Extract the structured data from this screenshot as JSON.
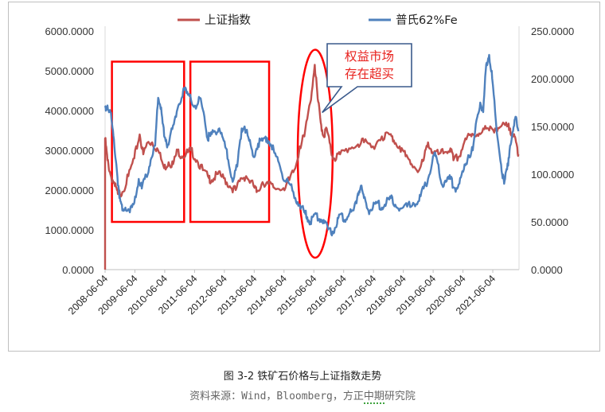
{
  "caption": "图 3-2 铁矿石价格与上证指数走势",
  "source_prefix": "资料来源：Wind，Bloomberg，方正",
  "source_underlined": "中期",
  "source_suffix": "研究院",
  "callout_text": [
    "权益市场",
    "存在超买"
  ],
  "chart_data": {
    "type": "line",
    "title": "",
    "x_ticks": [
      "2008-06-04",
      "2009-06-04",
      "2010-06-04",
      "2011-06-04",
      "2012-06-04",
      "2013-06-04",
      "2014-06-04",
      "2015-06-04",
      "2016-06-04",
      "2017-06-04",
      "2018-06-04",
      "2019-06-04",
      "2020-06-04",
      "2021-06-04"
    ],
    "x_range": [
      2008.42,
      2022.3
    ],
    "y_left": {
      "ticks": [
        "0.0000",
        "1000.0000",
        "2000.0000",
        "3000.0000",
        "4000.0000",
        "5000.0000",
        "6000.0000"
      ],
      "range": [
        0,
        6000
      ]
    },
    "y_right": {
      "ticks": [
        "0.0000",
        "50.0000",
        "100.0000",
        "150.0000",
        "200.0000",
        "250.0000"
      ],
      "range": [
        0,
        250
      ]
    },
    "legend": {
      "position": "top",
      "entries": [
        "上证指数",
        "普氏62%Fe"
      ]
    },
    "series": [
      {
        "name": "上证指数",
        "axis": "left",
        "color": "#c0504d",
        "points": [
          [
            2008.42,
            3300
          ],
          [
            2008.5,
            2750
          ],
          [
            2008.6,
            2400
          ],
          [
            2008.75,
            2100
          ],
          [
            2008.85,
            1900
          ],
          [
            2009.0,
            1950
          ],
          [
            2009.2,
            2350
          ],
          [
            2009.4,
            2800
          ],
          [
            2009.58,
            3400
          ],
          [
            2009.7,
            2900
          ],
          [
            2009.85,
            3200
          ],
          [
            2010.0,
            3200
          ],
          [
            2010.2,
            3000
          ],
          [
            2010.4,
            2550
          ],
          [
            2010.55,
            2700
          ],
          [
            2010.7,
            2650
          ],
          [
            2010.85,
            3000
          ],
          [
            2011.0,
            2850
          ],
          [
            2011.2,
            2950
          ],
          [
            2011.3,
            3000
          ],
          [
            2011.5,
            2750
          ],
          [
            2011.7,
            2500
          ],
          [
            2011.9,
            2300
          ],
          [
            2012.0,
            2250
          ],
          [
            2012.2,
            2400
          ],
          [
            2012.4,
            2300
          ],
          [
            2012.6,
            2100
          ],
          [
            2012.8,
            2000
          ],
          [
            2013.0,
            2300
          ],
          [
            2013.15,
            2350
          ],
          [
            2013.4,
            2100
          ],
          [
            2013.5,
            1950
          ],
          [
            2013.7,
            2200
          ],
          [
            2013.9,
            2150
          ],
          [
            2014.1,
            2050
          ],
          [
            2014.4,
            2050
          ],
          [
            2014.6,
            2250
          ],
          [
            2014.8,
            2550
          ],
          [
            2014.95,
            3100
          ],
          [
            2015.1,
            3350
          ],
          [
            2015.3,
            4200
          ],
          [
            2015.45,
            5150
          ],
          [
            2015.55,
            4300
          ],
          [
            2015.65,
            3700
          ],
          [
            2015.75,
            3350
          ],
          [
            2015.85,
            3550
          ],
          [
            2016.0,
            2950
          ],
          [
            2016.1,
            2800
          ],
          [
            2016.3,
            2900
          ],
          [
            2016.6,
            3050
          ],
          [
            2016.9,
            3150
          ],
          [
            2017.1,
            3200
          ],
          [
            2017.4,
            3100
          ],
          [
            2017.7,
            3350
          ],
          [
            2017.95,
            3400
          ],
          [
            2018.1,
            3250
          ],
          [
            2018.3,
            3100
          ],
          [
            2018.5,
            2850
          ],
          [
            2018.7,
            2650
          ],
          [
            2018.95,
            2500
          ],
          [
            2019.1,
            2750
          ],
          [
            2019.25,
            3200
          ],
          [
            2019.4,
            2950
          ],
          [
            2019.6,
            2900
          ],
          [
            2019.8,
            2950
          ],
          [
            2020.0,
            3050
          ],
          [
            2020.1,
            2750
          ],
          [
            2020.3,
            2850
          ],
          [
            2020.5,
            3300
          ],
          [
            2020.7,
            3350
          ],
          [
            2020.9,
            3400
          ],
          [
            2021.1,
            3550
          ],
          [
            2021.3,
            3500
          ],
          [
            2021.5,
            3550
          ],
          [
            2021.7,
            3600
          ],
          [
            2021.9,
            3600
          ],
          [
            2022.0,
            3550
          ],
          [
            2022.1,
            3350
          ],
          [
            2022.2,
            3200
          ],
          [
            2022.28,
            2900
          ]
        ]
      },
      {
        "name": "普氏62%Fe",
        "axis": "right",
        "color": "#4f81bd",
        "points": [
          [
            2008.42,
            170
          ],
          [
            2008.5,
            172
          ],
          [
            2008.6,
            165
          ],
          [
            2008.7,
            140
          ],
          [
            2008.8,
            110
          ],
          [
            2008.9,
            75
          ],
          [
            2009.0,
            62
          ],
          [
            2009.1,
            65
          ],
          [
            2009.25,
            60
          ],
          [
            2009.4,
            70
          ],
          [
            2009.55,
            95
          ],
          [
            2009.65,
            85
          ],
          [
            2009.8,
            98
          ],
          [
            2009.95,
            115
          ],
          [
            2010.1,
            130
          ],
          [
            2010.2,
            180
          ],
          [
            2010.3,
            170
          ],
          [
            2010.4,
            140
          ],
          [
            2010.5,
            128
          ],
          [
            2010.65,
            148
          ],
          [
            2010.8,
            160
          ],
          [
            2010.95,
            175
          ],
          [
            2011.05,
            190
          ],
          [
            2011.15,
            185
          ],
          [
            2011.3,
            178
          ],
          [
            2011.5,
            172
          ],
          [
            2011.6,
            180
          ],
          [
            2011.75,
            160
          ],
          [
            2011.85,
            138
          ],
          [
            2011.95,
            140
          ],
          [
            2012.1,
            145
          ],
          [
            2012.25,
            148
          ],
          [
            2012.4,
            135
          ],
          [
            2012.55,
            115
          ],
          [
            2012.7,
            92
          ],
          [
            2012.85,
            108
          ],
          [
            2013.0,
            148
          ],
          [
            2013.1,
            150
          ],
          [
            2013.25,
            135
          ],
          [
            2013.4,
            118
          ],
          [
            2013.55,
            132
          ],
          [
            2013.7,
            135
          ],
          [
            2013.85,
            138
          ],
          [
            2014.0,
            130
          ],
          [
            2014.1,
            122
          ],
          [
            2014.25,
            112
          ],
          [
            2014.45,
            93
          ],
          [
            2014.6,
            90
          ],
          [
            2014.8,
            75
          ],
          [
            2014.95,
            68
          ],
          [
            2015.1,
            60
          ],
          [
            2015.2,
            55
          ],
          [
            2015.3,
            50
          ],
          [
            2015.45,
            58
          ],
          [
            2015.6,
            53
          ],
          [
            2015.75,
            52
          ],
          [
            2015.9,
            42
          ],
          [
            2016.05,
            40
          ],
          [
            2016.2,
            48
          ],
          [
            2016.3,
            58
          ],
          [
            2016.45,
            52
          ],
          [
            2016.6,
            58
          ],
          [
            2016.75,
            62
          ],
          [
            2016.9,
            80
          ],
          [
            2017.0,
            88
          ],
          [
            2017.1,
            75
          ],
          [
            2017.25,
            62
          ],
          [
            2017.4,
            65
          ],
          [
            2017.55,
            70
          ],
          [
            2017.7,
            65
          ],
          [
            2017.85,
            70
          ],
          [
            2018.0,
            75
          ],
          [
            2018.15,
            68
          ],
          [
            2018.35,
            64
          ],
          [
            2018.55,
            66
          ],
          [
            2018.75,
            70
          ],
          [
            2018.95,
            72
          ],
          [
            2019.1,
            85
          ],
          [
            2019.25,
            95
          ],
          [
            2019.45,
            120
          ],
          [
            2019.55,
            115
          ],
          [
            2019.7,
            90
          ],
          [
            2019.85,
            92
          ],
          [
            2020.0,
            95
          ],
          [
            2020.15,
            85
          ],
          [
            2020.3,
            90
          ],
          [
            2020.45,
            105
          ],
          [
            2020.6,
            120
          ],
          [
            2020.75,
            125
          ],
          [
            2020.9,
            160
          ],
          [
            2021.0,
            175
          ],
          [
            2021.1,
            165
          ],
          [
            2021.2,
            215
          ],
          [
            2021.3,
            225
          ],
          [
            2021.4,
            200
          ],
          [
            2021.55,
            145
          ],
          [
            2021.7,
            110
          ],
          [
            2021.8,
            90
          ],
          [
            2021.9,
            105
          ],
          [
            2022.0,
            130
          ],
          [
            2022.1,
            145
          ],
          [
            2022.2,
            160
          ],
          [
            2022.28,
            145
          ]
        ]
      }
    ],
    "annotations": [
      {
        "type": "rect",
        "color": "#ff0000",
        "x_range": [
          2008.65,
          2011.07
        ],
        "y_range": [
          1200,
          5230
        ]
      },
      {
        "type": "rect",
        "color": "#ff0000",
        "x_range": [
          2011.28,
          2013.92
        ],
        "y_range": [
          1200,
          5230
        ]
      },
      {
        "type": "ellipse",
        "color": "#ff0000",
        "x_range": [
          2014.88,
          2016.05
        ],
        "y_range": [
          300,
          5530
        ]
      }
    ]
  }
}
